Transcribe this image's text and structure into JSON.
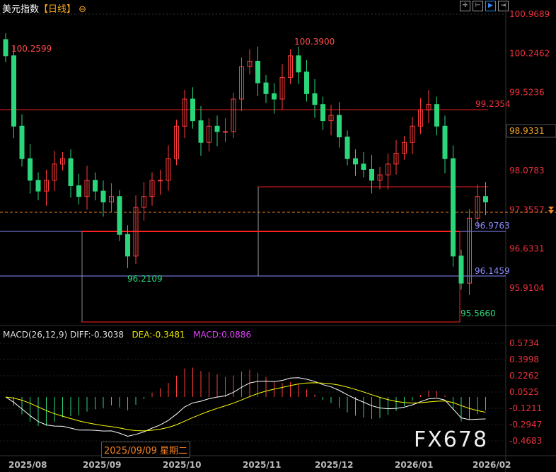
{
  "title": {
    "name": "美元指数",
    "period": "【日线】",
    "icon": "zoom-circle-icon"
  },
  "toolbar": [
    {
      "icon": "crosshair-icon"
    },
    {
      "icon": "fit-range-icon"
    },
    {
      "icon": "play-right-icon",
      "active": true
    },
    {
      "icon": "jump-end-icon"
    }
  ],
  "price_axis": [
    "100.9689",
    "100.2462",
    "99.5236",
    "98.9331",
    "98.0783",
    "97.3557",
    "96.6331",
    "95.9104"
  ],
  "levels": {
    "high_label": "100.2599",
    "peak_label": "100.3900",
    "low_label": "96.2109",
    "min_label": "95.5660",
    "red_line": "99.2354",
    "blue1": "96.9763",
    "blue2": "96.1459",
    "current": "97.3557",
    "current_box": "98.9331"
  },
  "macd": {
    "header": "MACD(26,12,9)",
    "diff": "DIFF:-0.3038",
    "dea": "DEA:-0.3481",
    "macd": "MACD:0.0886",
    "axis": [
      "0.5734",
      "0.3998",
      "0.2262",
      "0.0525",
      "-0.1211",
      "-0.2947",
      "-0.4683"
    ]
  },
  "time_axis": [
    "2025/08",
    "2025/09",
    "2025/10",
    "2025/11",
    "2025/12",
    "2026/01",
    "2026/02"
  ],
  "crosshair_date": "2025/09/09 星期二",
  "watermark": "FX678",
  "colors": {
    "up": "#ff3b3b",
    "down": "#2bd67b",
    "diff": "#ffffff",
    "dea": "#ffff00",
    "macd": "#e040fb"
  },
  "chart_data": {
    "type": "candlestick",
    "closes": [
      100.2,
      98.9,
      98.3,
      97.9,
      97.7,
      97.9,
      98.2,
      98.3,
      97.8,
      97.6,
      97.9,
      97.7,
      97.5,
      97.6,
      96.9,
      96.5,
      97.4,
      97.6,
      97.9,
      97.9,
      98.3,
      98.9,
      99.4,
      99.0,
      98.6,
      98.9,
      98.8,
      98.8,
      99.4,
      100.0,
      100.1,
      99.7,
      99.5,
      99.4,
      99.8,
      100.2,
      99.9,
      99.5,
      99.3,
      99.0,
      99.1,
      98.7,
      98.3,
      98.2,
      98.1,
      97.9,
      98.0,
      98.2,
      98.4,
      98.6,
      98.9,
      99.2,
      99.3,
      98.9,
      98.3,
      96.5,
      96.0,
      97.2,
      97.6,
      97.5
    ],
    "ylim": [
      95.5,
      101.1
    ]
  }
}
